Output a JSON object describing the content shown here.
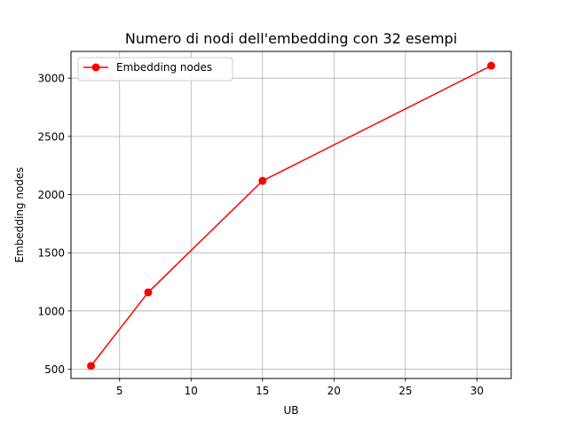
{
  "chart_data": {
    "type": "line",
    "title": "Numero di nodi dell'embedding con 32 esempi",
    "xlabel": "UB",
    "ylabel": "Embedding nodes",
    "xlim": [
      1.6,
      32.4
    ],
    "ylim": [
      420,
      3230
    ],
    "xticks": [
      5,
      10,
      15,
      20,
      25,
      30
    ],
    "yticks": [
      500,
      1000,
      1500,
      2000,
      2500,
      3000
    ],
    "grid": true,
    "legend_position": "upper-left",
    "series": [
      {
        "name": "Embedding nodes",
        "color": "#ff0000",
        "marker": "circle",
        "x": [
          3,
          7,
          15,
          31
        ],
        "y": [
          528,
          1160,
          2118,
          3107
        ]
      }
    ]
  }
}
